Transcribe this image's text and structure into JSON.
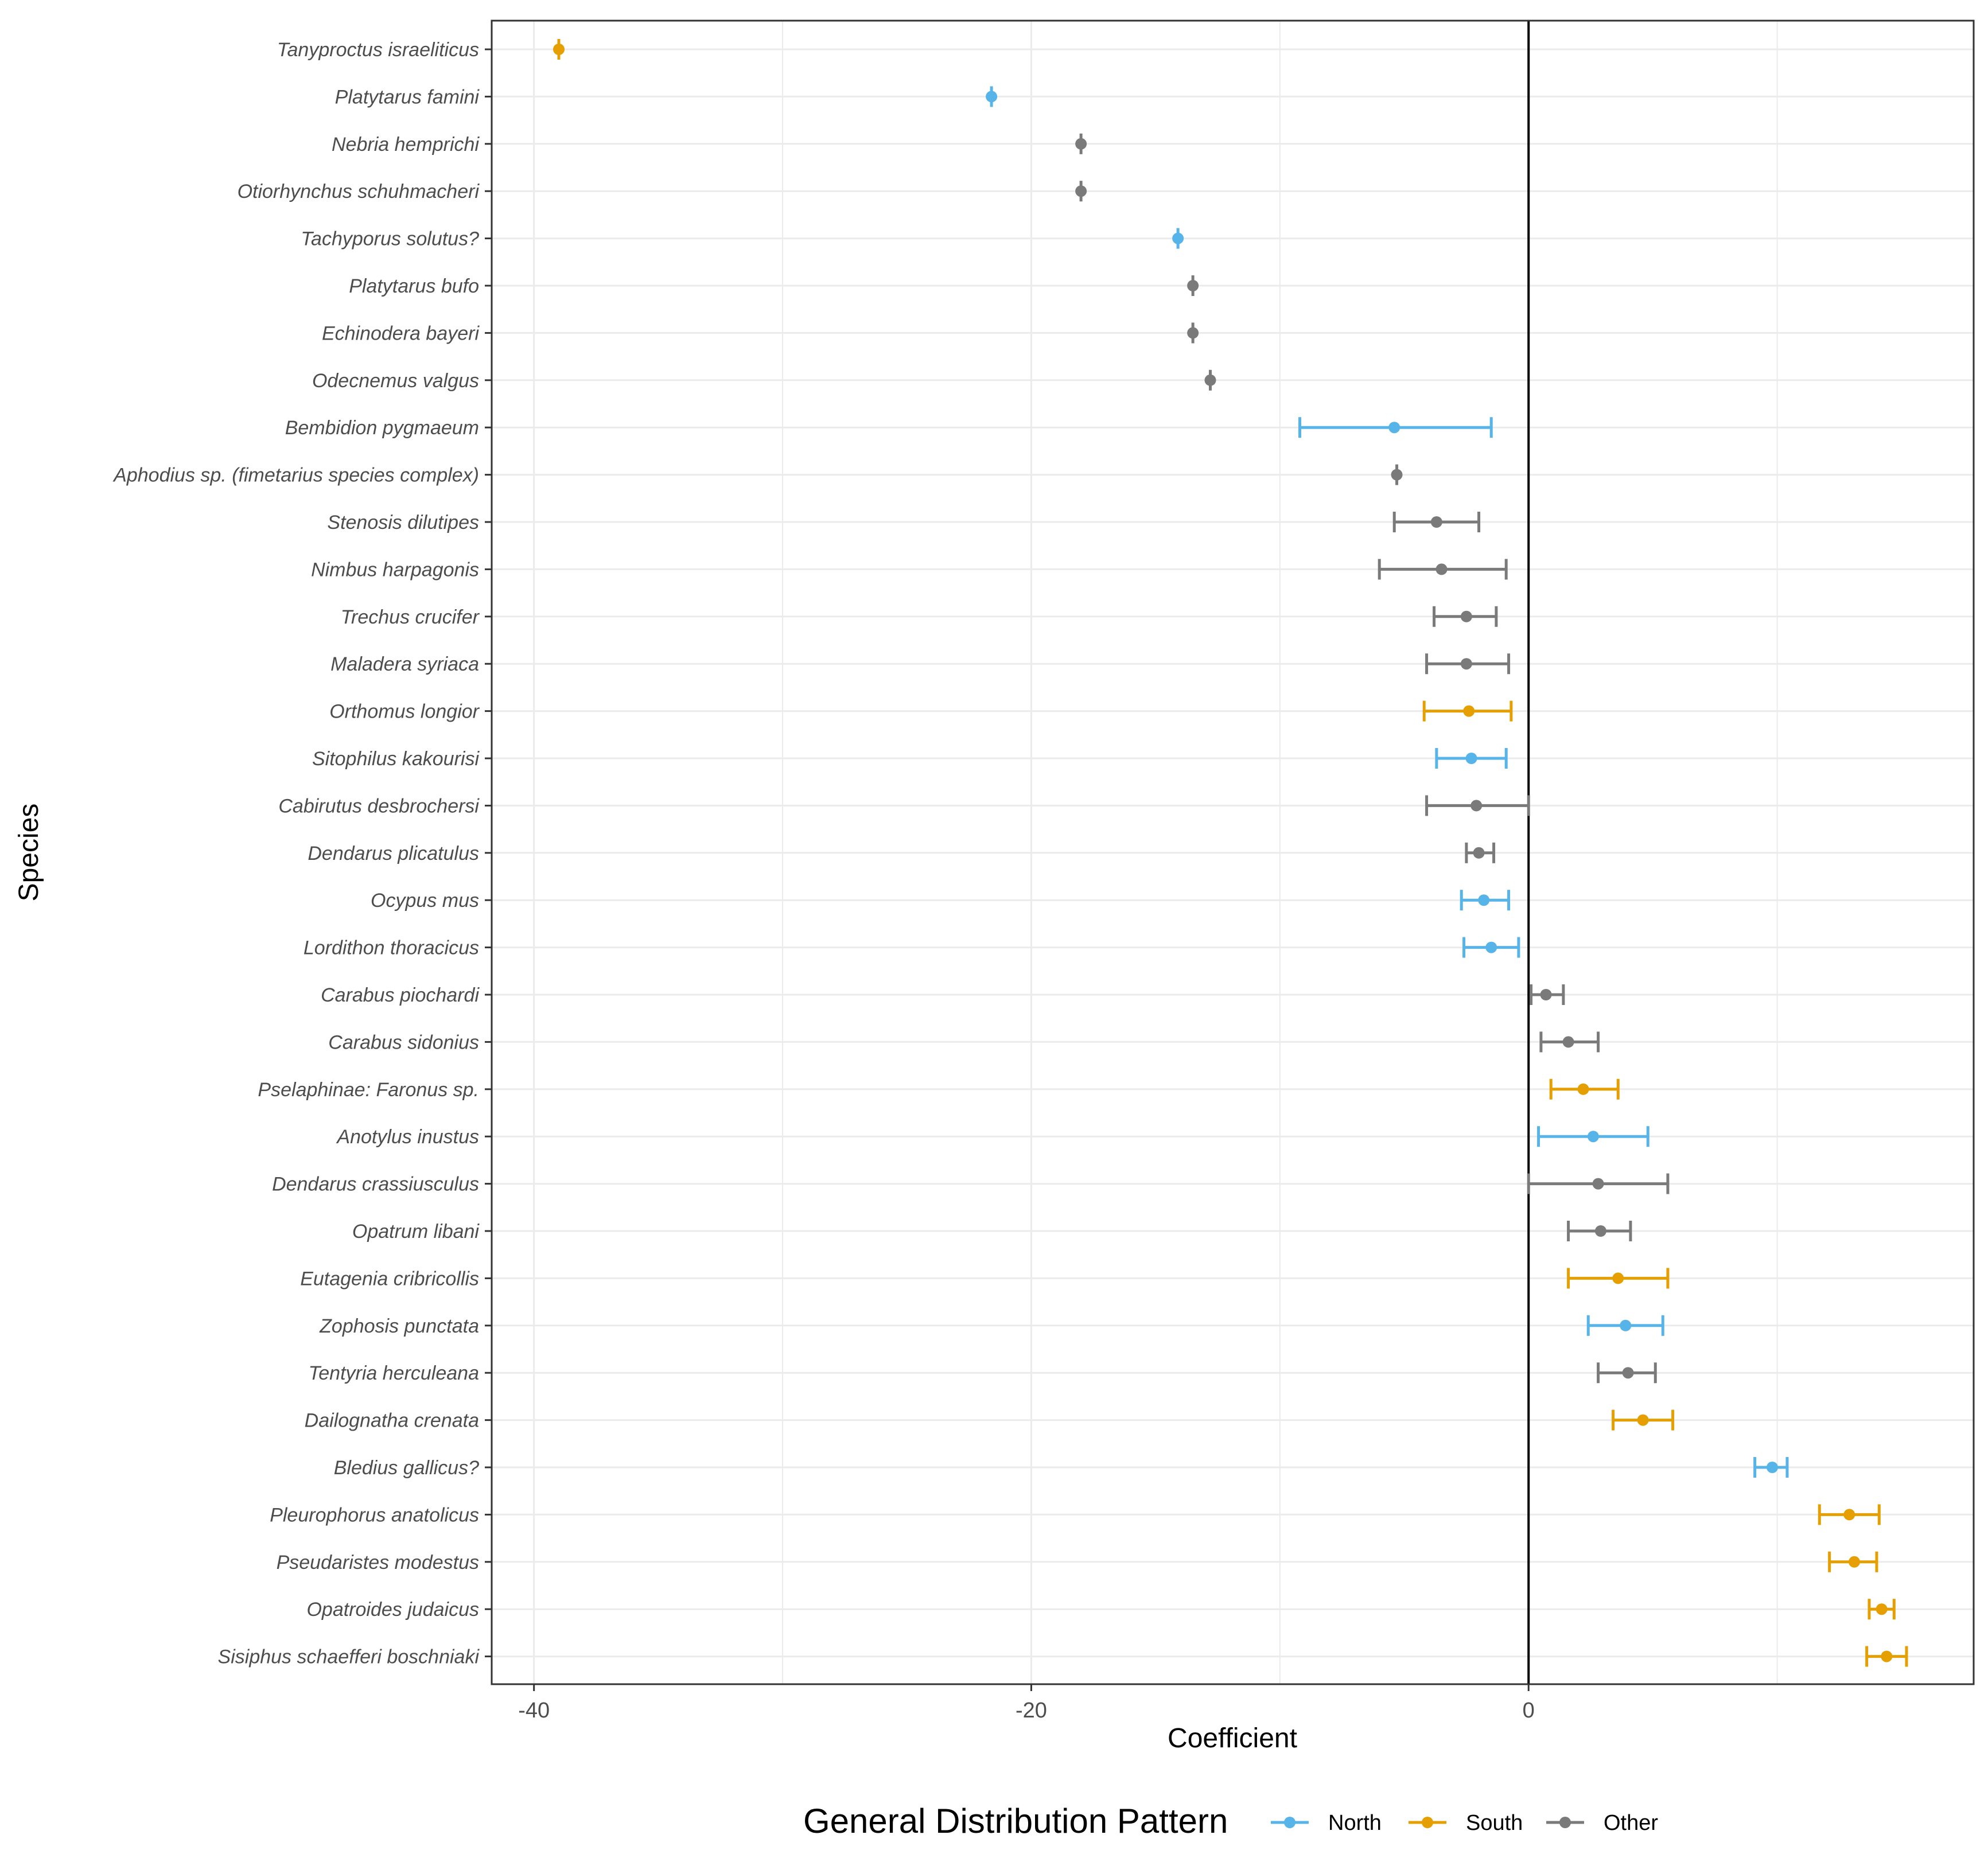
{
  "chart_data": {
    "type": "forest",
    "xlabel": "Coefficient",
    "ylabel": "Species",
    "xlim": [
      -41.7,
      17.9
    ],
    "x_ticks": [
      -40,
      -20,
      0
    ],
    "x_tick_labels": [
      "-40",
      "-20",
      "0"
    ],
    "reference_line_x": 0,
    "grid": true,
    "legend": {
      "title": "General Distribution Pattern",
      "position": "bottom",
      "entries": [
        {
          "key": "north",
          "label": "North"
        },
        {
          "key": "south",
          "label": "South"
        },
        {
          "key": "other",
          "label": "Other"
        }
      ]
    },
    "colors": {
      "north": "#56B4E9",
      "south": "#E69F00",
      "other": "#7a7a7a",
      "grid": "#ebebeb",
      "frame": "#333333",
      "zero_line": "#000000"
    },
    "series": [
      {
        "species": "Tanyproctus israeliticus",
        "group": "south",
        "estimate": -39.0,
        "low": -39.0,
        "high": -39.0
      },
      {
        "species": "Platytarus famini",
        "group": "north",
        "estimate": -21.6,
        "low": -21.6,
        "high": -21.6
      },
      {
        "species": "Nebria hemprichi",
        "group": "other",
        "estimate": -18.0,
        "low": -18.0,
        "high": -18.0
      },
      {
        "species": "Otiorhynchus  schuhmacheri",
        "group": "other",
        "estimate": -18.0,
        "low": -18.0,
        "high": -18.0
      },
      {
        "species": "Tachyporus solutus?",
        "group": "north",
        "estimate": -14.1,
        "low": -14.1,
        "high": -14.1
      },
      {
        "species": "Platytarus bufo",
        "group": "other",
        "estimate": -13.5,
        "low": -13.5,
        "high": -13.5
      },
      {
        "species": "Echinodera bayeri",
        "group": "other",
        "estimate": -13.5,
        "low": -13.5,
        "high": -13.5
      },
      {
        "species": "Odecnemus valgus",
        "group": "other",
        "estimate": -12.8,
        "low": -12.8,
        "high": -12.8
      },
      {
        "species": "Bembidion pygmaeum",
        "group": "north",
        "estimate": -5.4,
        "low": -9.2,
        "high": -1.5
      },
      {
        "species": "Aphodius sp. (fimetarius species complex)",
        "group": "other",
        "estimate": -5.3,
        "low": -5.3,
        "high": -5.3
      },
      {
        "species": "Stenosis dilutipes",
        "group": "other",
        "estimate": -3.7,
        "low": -5.4,
        "high": -2.0
      },
      {
        "species": "Nimbus harpagonis",
        "group": "other",
        "estimate": -3.5,
        "low": -6.0,
        "high": -0.9
      },
      {
        "species": "Trechus crucifer",
        "group": "other",
        "estimate": -2.5,
        "low": -3.8,
        "high": -1.3
      },
      {
        "species": "Maladera syriaca",
        "group": "other",
        "estimate": -2.5,
        "low": -4.1,
        "high": -0.8
      },
      {
        "species": "Orthomus longior",
        "group": "south",
        "estimate": -2.4,
        "low": -4.2,
        "high": -0.7
      },
      {
        "species": "Sitophilus kakourisi",
        "group": "north",
        "estimate": -2.3,
        "low": -3.7,
        "high": -0.9
      },
      {
        "species": "Cabirutus desbrochersi",
        "group": "other",
        "estimate": -2.1,
        "low": -4.1,
        "high": 0.0
      },
      {
        "species": "Dendarus plicatulus",
        "group": "other",
        "estimate": -2.0,
        "low": -2.5,
        "high": -1.4
      },
      {
        "species": "Ocypus mus",
        "group": "north",
        "estimate": -1.8,
        "low": -2.7,
        "high": -0.8
      },
      {
        "species": "Lordithon thoracicus",
        "group": "north",
        "estimate": -1.5,
        "low": -2.6,
        "high": -0.4
      },
      {
        "species": "Carabus piochardi",
        "group": "other",
        "estimate": 0.7,
        "low": 0.1,
        "high": 1.4
      },
      {
        "species": "Carabus sidonius",
        "group": "other",
        "estimate": 1.6,
        "low": 0.5,
        "high": 2.8
      },
      {
        "species": "Pselaphinae: Faronus sp.",
        "group": "south",
        "estimate": 2.2,
        "low": 0.9,
        "high": 3.6
      },
      {
        "species": "Anotylus inustus",
        "group": "north",
        "estimate": 2.6,
        "low": 0.4,
        "high": 4.8
      },
      {
        "species": "Dendarus crassiusculus",
        "group": "other",
        "estimate": 2.8,
        "low": 0.0,
        "high": 5.6
      },
      {
        "species": "Opatrum libani",
        "group": "other",
        "estimate": 2.9,
        "low": 1.6,
        "high": 4.1
      },
      {
        "species": "Eutagenia cribricollis",
        "group": "south",
        "estimate": 3.6,
        "low": 1.6,
        "high": 5.6
      },
      {
        "species": "Zophosis punctata",
        "group": "north",
        "estimate": 3.9,
        "low": 2.4,
        "high": 5.4
      },
      {
        "species": "Tentyria herculeana",
        "group": "other",
        "estimate": 4.0,
        "low": 2.8,
        "high": 5.1
      },
      {
        "species": "Dailognatha crenata",
        "group": "south",
        "estimate": 4.6,
        "low": 3.4,
        "high": 5.8
      },
      {
        "species": "Bledius gallicus?",
        "group": "north",
        "estimate": 9.8,
        "low": 9.1,
        "high": 10.4
      },
      {
        "species": "Pleurophorus anatolicus",
        "group": "south",
        "estimate": 12.9,
        "low": 11.7,
        "high": 14.1
      },
      {
        "species": "Pseudaristes modestus",
        "group": "south",
        "estimate": 13.1,
        "low": 12.1,
        "high": 14.0
      },
      {
        "species": "Opatroides judaicus",
        "group": "south",
        "estimate": 14.2,
        "low": 13.7,
        "high": 14.7
      },
      {
        "species": "Sisiphus schaefferi boschniaki",
        "group": "south",
        "estimate": 14.4,
        "low": 13.6,
        "high": 15.2
      }
    ]
  }
}
